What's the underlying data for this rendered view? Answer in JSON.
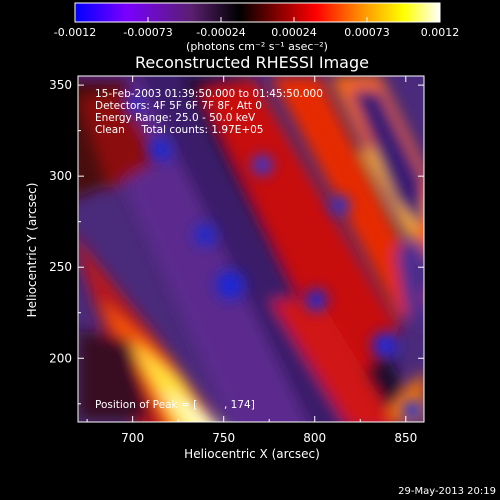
{
  "chart_data": {
    "type": "heatmap",
    "title": "Reconstructed RHESSI Image",
    "xlabel": "Heliocentric X (arcsec)",
    "ylabel": "Heliocentric Y (arcsec)",
    "xlim": [
      670,
      860
    ],
    "ylim": [
      165,
      355
    ],
    "xticks": [
      700,
      750,
      800,
      850
    ],
    "yticks": [
      200,
      250,
      300,
      350
    ],
    "colorbar": {
      "range": [
        -0.0012,
        0.0012
      ],
      "tick_labels": [
        "-0.0012",
        "-0.00073",
        "-0.00024",
        "0.00024",
        "0.00073",
        "0.0012"
      ],
      "unit_label": "(photons cm⁻² s⁻¹ asec⁻²)",
      "colors": [
        "#0000ff",
        "#7a00ff",
        "#5a1f6e",
        "#000000",
        "#8b0000",
        "#ff0000",
        "#ff8c00",
        "#ffff00",
        "#ffffff"
      ]
    },
    "annotations": [
      "15-Feb-2003 01:39:50.000 to 01:45:50.000",
      "Detectors: 4F 5F 6F 7F 8F, Att 0",
      "Energy Range: 25.0 - 50.0 keV",
      "Clean     Total counts: 1.97E+05"
    ],
    "peak_label": "Position of Peak = [",
    "peak_value": ", 174]",
    "footer": "29-May-2013 20:19"
  }
}
